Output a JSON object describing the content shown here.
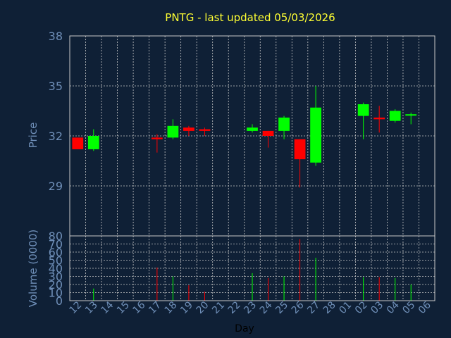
{
  "chart_data": {
    "type": "candlestick",
    "title": "PNTG - last updated 05/03/2026",
    "price_axis": {
      "label": "Price",
      "ylim": [
        26,
        38
      ],
      "ticks": [
        29,
        32,
        35,
        38
      ]
    },
    "volume_axis": {
      "label": "Volume (0000)",
      "ylim": [
        0,
        80
      ],
      "ticks": [
        0,
        10,
        20,
        30,
        40,
        50,
        60,
        70,
        80
      ]
    },
    "xlabel": "Day",
    "x_ticks": [
      "12",
      "13",
      "14",
      "15",
      "16",
      "17",
      "18",
      "19",
      "20",
      "21",
      "22",
      "23",
      "24",
      "25",
      "26",
      "27",
      "28",
      "01",
      "02",
      "03",
      "04",
      "05",
      "06"
    ],
    "grid": true,
    "colors": {
      "up": "#00ff00",
      "down": "#ff0000",
      "grid": "#c8c8c8",
      "axis": "#c8c8c8",
      "background": "#0f2036"
    },
    "candles": [
      {
        "day": "12",
        "open": 31.9,
        "high": 31.9,
        "low": 31.2,
        "close": 31.2,
        "volume": 0
      },
      {
        "day": "13",
        "open": 31.2,
        "high": 32.4,
        "low": 31.1,
        "close": 32.0,
        "volume": 15
      },
      {
        "day": "17",
        "open": 31.9,
        "high": 32.1,
        "low": 31.0,
        "close": 31.8,
        "volume": 41
      },
      {
        "day": "18",
        "open": 31.9,
        "high": 33.0,
        "low": 31.8,
        "close": 32.6,
        "volume": 30
      },
      {
        "day": "19",
        "open": 32.5,
        "high": 32.6,
        "low": 32.0,
        "close": 32.3,
        "volume": 19
      },
      {
        "day": "20",
        "open": 32.4,
        "high": 32.5,
        "low": 32.0,
        "close": 32.3,
        "volume": 11
      },
      {
        "day": "23",
        "open": 32.3,
        "high": 32.7,
        "low": 32.2,
        "close": 32.5,
        "volume": 34
      },
      {
        "day": "24",
        "open": 32.3,
        "high": 32.3,
        "low": 31.3,
        "close": 32.0,
        "volume": 28
      },
      {
        "day": "25",
        "open": 32.3,
        "high": 33.2,
        "low": 31.8,
        "close": 33.1,
        "volume": 30
      },
      {
        "day": "26",
        "open": 31.8,
        "high": 31.8,
        "low": 28.9,
        "close": 30.6,
        "volume": 76
      },
      {
        "day": "27",
        "open": 30.4,
        "high": 35.0,
        "low": 30.2,
        "close": 33.7,
        "volume": 53
      },
      {
        "day": "02",
        "open": 33.2,
        "high": 34.0,
        "low": 31.8,
        "close": 33.9,
        "volume": 29
      },
      {
        "day": "03",
        "open": 33.1,
        "high": 33.8,
        "low": 32.2,
        "close": 33.0,
        "volume": 29
      },
      {
        "day": "04",
        "open": 32.9,
        "high": 33.6,
        "low": 32.8,
        "close": 33.5,
        "volume": 28
      },
      {
        "day": "05",
        "open": 33.3,
        "high": 33.4,
        "low": 32.7,
        "close": 33.3,
        "volume": 20
      }
    ]
  }
}
